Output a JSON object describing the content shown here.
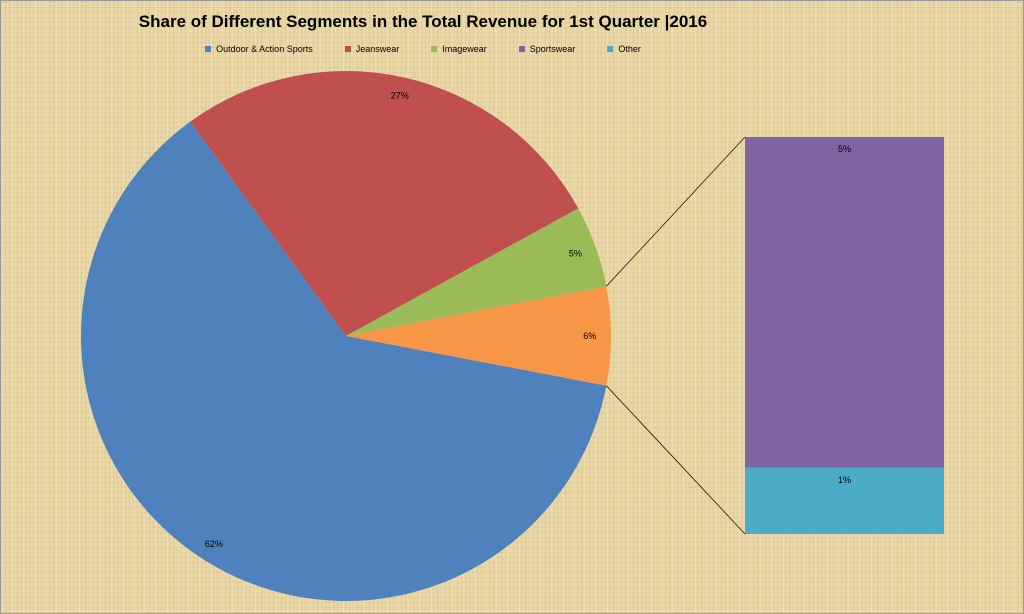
{
  "chart_data": {
    "type": "pie",
    "subtype": "bar-of-pie",
    "title": "Share of Different Segments in the Total Revenue for 1st Quarter |2016",
    "legend_position": "top",
    "series": [
      {
        "name": "Outdoor & Action Sports",
        "value": 62,
        "label": "62%",
        "color": "#4f81bd"
      },
      {
        "name": "Jeanswear",
        "value": 27,
        "label": "27%",
        "color": "#c0504d"
      },
      {
        "name": "Imagewear",
        "value": 5,
        "label": "5%",
        "color": "#9bbb59"
      },
      {
        "name": "Sportswear",
        "value": 5,
        "label": "5%",
        "color": "#8064a2"
      },
      {
        "name": "Other",
        "value": 1,
        "label": "1%",
        "color": "#4bacc6"
      }
    ],
    "pie_slices": [
      "Outdoor & Action Sports",
      "Jeanswear",
      "Imagewear",
      "Other (combined)"
    ],
    "combined_slice": {
      "value": 6,
      "label": "6%",
      "color": "#f79646"
    },
    "secondary_bar": [
      "Sportswear",
      "Other"
    ]
  }
}
